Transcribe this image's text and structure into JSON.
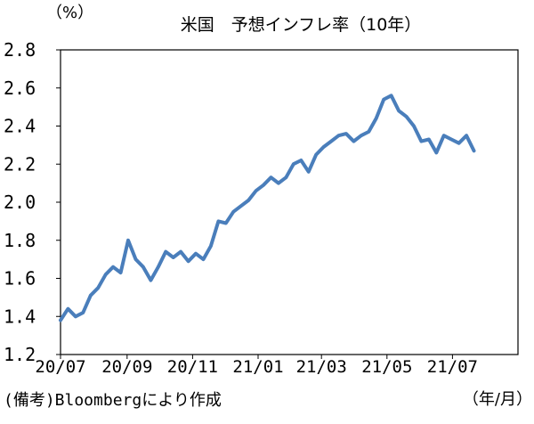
{
  "chart_data": {
    "type": "line",
    "title": "米国　予想インフレ率（10年）",
    "ylabel": "（%）",
    "xlabel": "（年/月）",
    "source_note": "(備考)Bloombergにより作成",
    "ylim": [
      1.2,
      2.8
    ],
    "y_ticks": [
      "2.8",
      "2.6",
      "2.4",
      "2.2",
      "2.0",
      "1.8",
      "1.6",
      "1.4",
      "1.2"
    ],
    "x_ticks": [
      "20/07",
      "20/09",
      "20/11",
      "21/01",
      "21/03",
      "21/05",
      "21/07"
    ],
    "grid": false,
    "series_color": "#4a7ebb",
    "series": [
      {
        "name": "",
        "x": [
          "2020-07-01",
          "2020-07-08",
          "2020-07-15",
          "2020-07-22",
          "2020-07-29",
          "2020-08-05",
          "2020-08-12",
          "2020-08-19",
          "2020-08-26",
          "2020-09-02",
          "2020-09-09",
          "2020-09-16",
          "2020-09-23",
          "2020-09-30",
          "2020-10-07",
          "2020-10-14",
          "2020-10-21",
          "2020-10-28",
          "2020-11-04",
          "2020-11-11",
          "2020-11-18",
          "2020-11-25",
          "2020-12-02",
          "2020-12-09",
          "2020-12-16",
          "2020-12-23",
          "2020-12-30",
          "2021-01-06",
          "2021-01-13",
          "2021-01-20",
          "2021-01-27",
          "2021-02-03",
          "2021-02-10",
          "2021-02-17",
          "2021-02-24",
          "2021-03-03",
          "2021-03-10",
          "2021-03-17",
          "2021-03-24",
          "2021-03-31",
          "2021-04-07",
          "2021-04-14",
          "2021-04-21",
          "2021-04-28",
          "2021-05-05",
          "2021-05-12",
          "2021-05-19",
          "2021-05-26",
          "2021-06-02",
          "2021-06-09",
          "2021-06-16",
          "2021-06-23",
          "2021-06-30",
          "2021-07-07",
          "2021-07-14",
          "2021-07-21"
        ],
        "values": [
          1.38,
          1.44,
          1.4,
          1.42,
          1.51,
          1.55,
          1.62,
          1.66,
          1.63,
          1.8,
          1.7,
          1.66,
          1.59,
          1.66,
          1.74,
          1.71,
          1.74,
          1.69,
          1.73,
          1.7,
          1.77,
          1.9,
          1.89,
          1.95,
          1.98,
          2.01,
          2.06,
          2.09,
          2.13,
          2.1,
          2.13,
          2.2,
          2.22,
          2.16,
          2.25,
          2.29,
          2.32,
          2.35,
          2.36,
          2.32,
          2.35,
          2.37,
          2.44,
          2.54,
          2.56,
          2.48,
          2.45,
          2.4,
          2.32,
          2.33,
          2.26,
          2.35,
          2.33,
          2.31,
          2.35,
          2.27
        ]
      }
    ]
  }
}
